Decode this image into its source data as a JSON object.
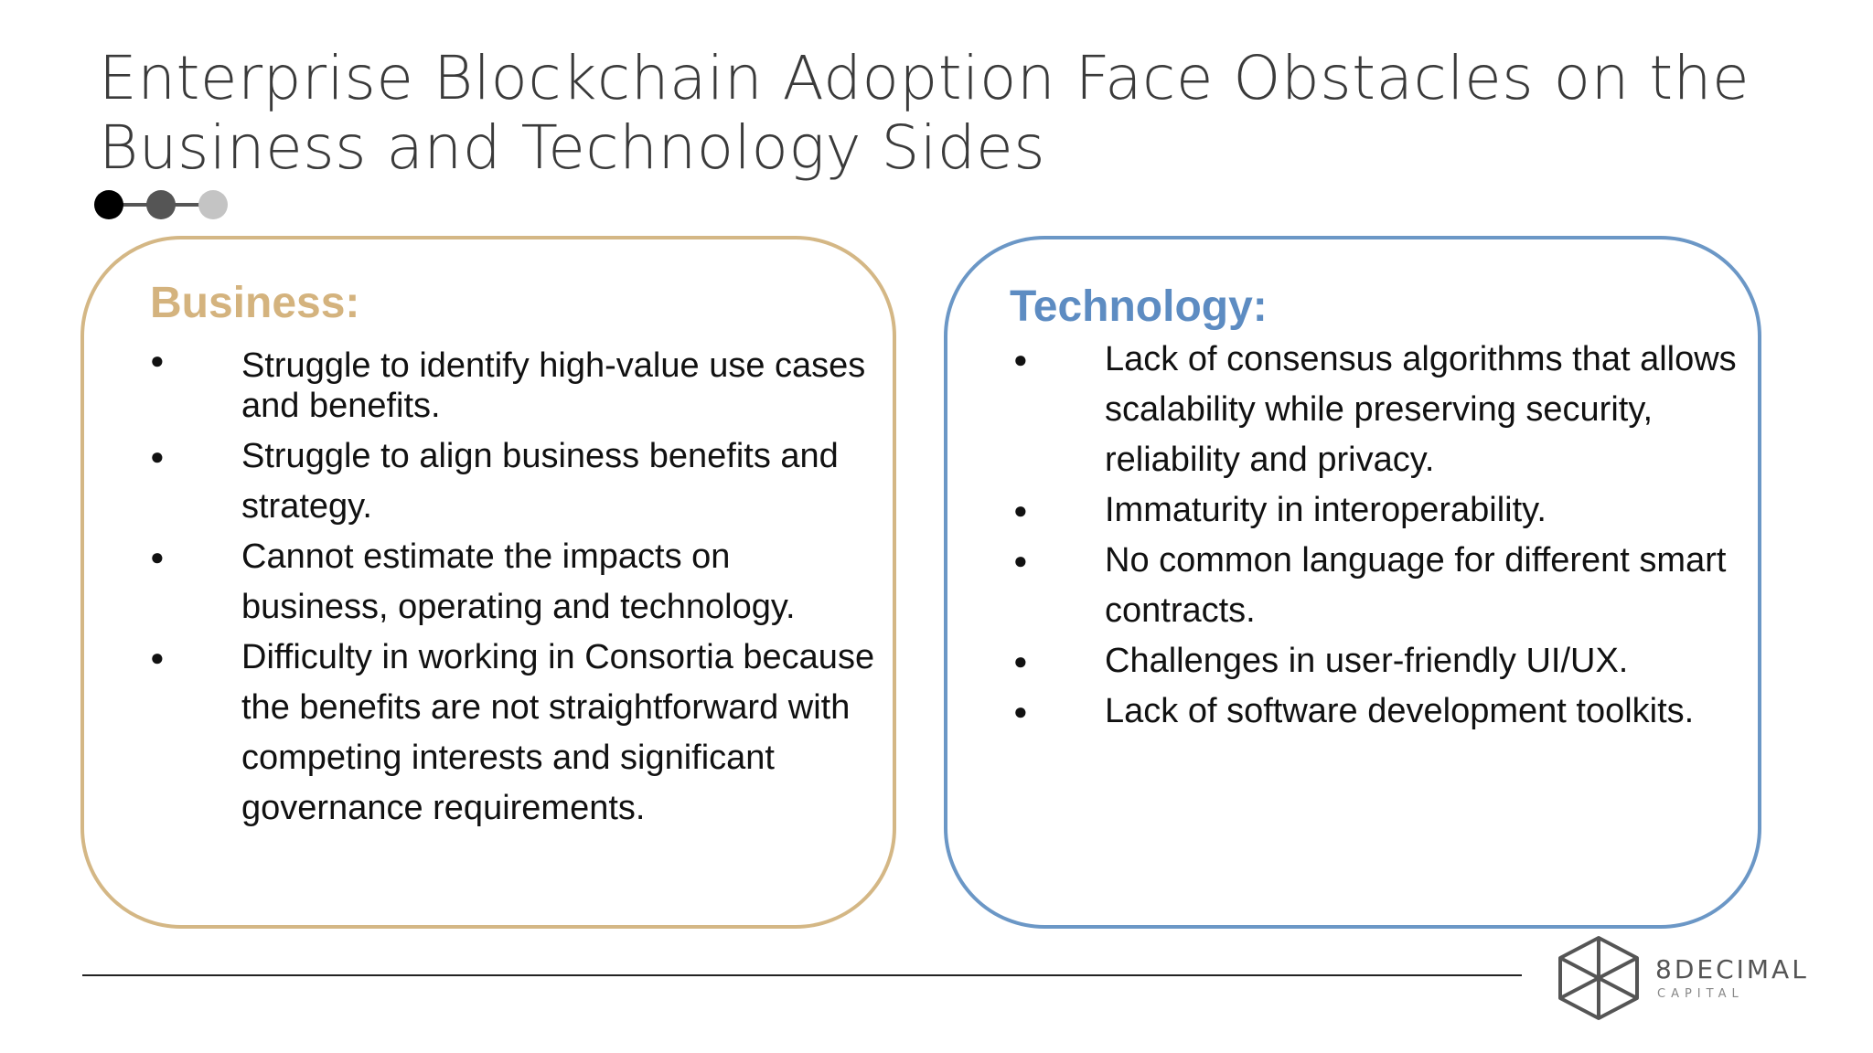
{
  "slide": {
    "title": "Enterprise Blockchain Adoption Face Obstacles on the Business and Technology Sides"
  },
  "business": {
    "heading": "Business:",
    "items": [
      "Struggle to identify high-value use cases and benefits.",
      "Struggle to align business benefits and strategy.",
      "Cannot estimate the impacts on business, operating and technology.",
      "Difficulty in working in Consortia because the benefits are not straightforward with competing interests and significant governance requirements."
    ]
  },
  "technology": {
    "heading": "Technology:",
    "items": [
      "Lack of consensus algorithms that allows scalability while preserving security, reliability and privacy.",
      "Immaturity in interoperability.",
      "No common language for different smart contracts.",
      "Challenges in user-friendly UI/UX.",
      "Lack of software development toolkits."
    ]
  },
  "logo": {
    "name": "8DECIMAL",
    "subtitle": "CAPITAL",
    "icon": "cube-icon"
  },
  "colors": {
    "business_accent": "#d4b785",
    "technology_accent": "#6b97c6",
    "title": "#3a3a3a"
  }
}
